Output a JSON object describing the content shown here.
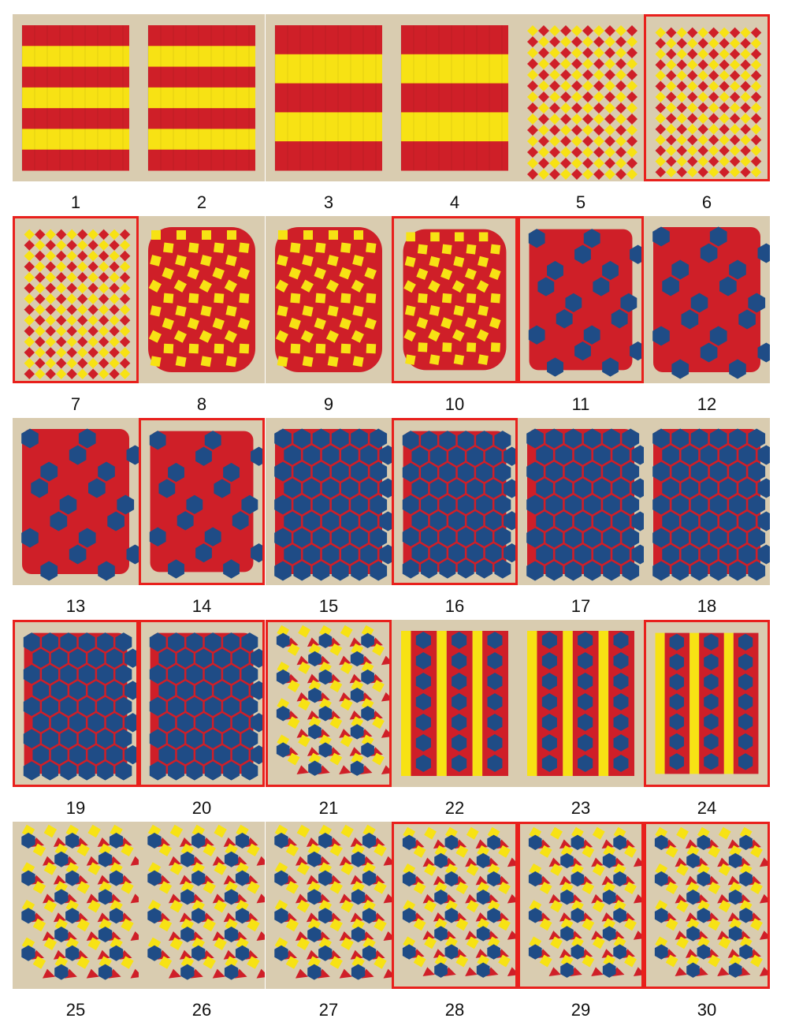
{
  "colors": {
    "red": "#cf1f28",
    "yellow": "#f7e214",
    "blue": "#1f4c86",
    "highlight": "#e8201c",
    "table": "#d9ccb0",
    "dark": "#2a2a2a"
  },
  "tiles": [
    {
      "label": "1",
      "highlighted": false,
      "pattern": "stripes-y"
    },
    {
      "label": "2",
      "highlighted": false,
      "pattern": "stripes-y"
    },
    {
      "label": "3",
      "highlighted": false,
      "pattern": "stripes-y-wide"
    },
    {
      "label": "4",
      "highlighted": false,
      "pattern": "stripes-y-wide"
    },
    {
      "label": "5",
      "highlighted": false,
      "pattern": "zigzag"
    },
    {
      "label": "6",
      "highlighted": true,
      "pattern": "zigzag"
    },
    {
      "label": "7",
      "highlighted": true,
      "pattern": "zigzag"
    },
    {
      "label": "8",
      "highlighted": false,
      "pattern": "checker"
    },
    {
      "label": "9",
      "highlighted": false,
      "pattern": "checker"
    },
    {
      "label": "10",
      "highlighted": true,
      "pattern": "checker"
    },
    {
      "label": "11",
      "highlighted": true,
      "pattern": "hex-sparse"
    },
    {
      "label": "12",
      "highlighted": false,
      "pattern": "hex-sparse"
    },
    {
      "label": "13",
      "highlighted": false,
      "pattern": "hex-sparse"
    },
    {
      "label": "14",
      "highlighted": true,
      "pattern": "hex-sparse"
    },
    {
      "label": "15",
      "highlighted": false,
      "pattern": "hex-dense"
    },
    {
      "label": "16",
      "highlighted": true,
      "pattern": "hex-dense"
    },
    {
      "label": "17",
      "highlighted": false,
      "pattern": "hex-dense"
    },
    {
      "label": "18",
      "highlighted": false,
      "pattern": "hex-dense"
    },
    {
      "label": "19",
      "highlighted": true,
      "pattern": "hex-dense"
    },
    {
      "label": "20",
      "highlighted": true,
      "pattern": "hex-dense"
    },
    {
      "label": "21",
      "highlighted": true,
      "pattern": "tri-color"
    },
    {
      "label": "22",
      "highlighted": false,
      "pattern": "columns"
    },
    {
      "label": "23",
      "highlighted": false,
      "pattern": "columns"
    },
    {
      "label": "24",
      "highlighted": true,
      "pattern": "columns"
    },
    {
      "label": "25",
      "highlighted": false,
      "pattern": "tri-color"
    },
    {
      "label": "26",
      "highlighted": false,
      "pattern": "tri-color"
    },
    {
      "label": "27",
      "highlighted": false,
      "pattern": "tri-color"
    },
    {
      "label": "28",
      "highlighted": true,
      "pattern": "tri-color"
    },
    {
      "label": "29",
      "highlighted": true,
      "pattern": "tri-color"
    },
    {
      "label": "30",
      "highlighted": true,
      "pattern": "tri-color"
    }
  ]
}
